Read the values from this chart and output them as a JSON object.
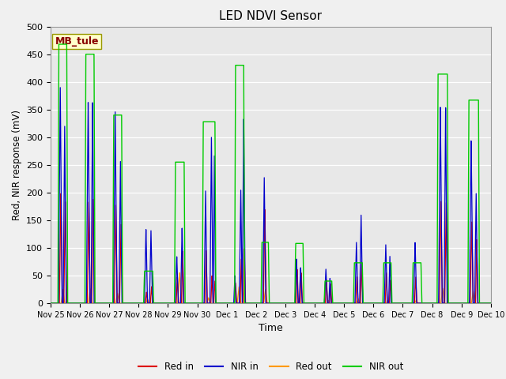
{
  "title": "LED NDVI Sensor",
  "xlabel": "Time",
  "ylabel": "Red, NIR response (mV)",
  "ylim": [
    0,
    500
  ],
  "fig_facecolor": "#f0f0f0",
  "plot_bg_color": "#e8e8e8",
  "annotation_text": "MB_tule",
  "annotation_bg": "#ffffcc",
  "annotation_border": "#999900",
  "annotation_text_color": "#880000",
  "colors": {
    "red_in": "#dd0000",
    "nir_in": "#0000cc",
    "red_out": "#ff9900",
    "nir_out": "#00cc00"
  },
  "tick_dates": [
    "Nov 25",
    "Nov 26",
    "Nov 27",
    "Nov 28",
    "Nov 29",
    "Nov 30",
    "Dec 1",
    "Dec 2",
    "Dec 3",
    "Dec 4",
    "Dec 5",
    "Dec 6",
    "Dec 7",
    "Dec 8",
    "Dec 9",
    "Dec 10"
  ],
  "legend": [
    "Red in",
    "NIR in",
    "Red out",
    "NIR out"
  ]
}
